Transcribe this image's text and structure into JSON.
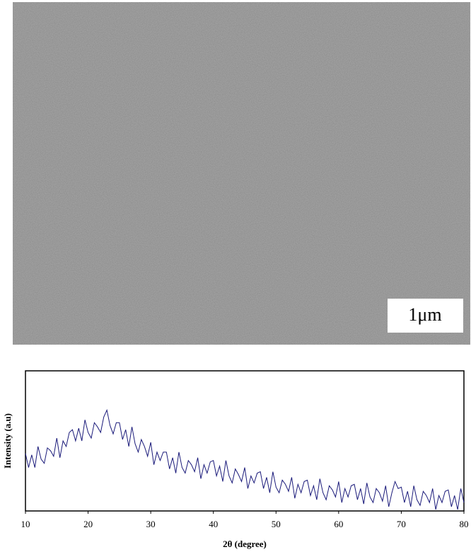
{
  "image": {
    "scale_label": "1μm"
  },
  "chart_data": {
    "type": "line",
    "xlabel": "2θ (degree)",
    "ylabel": "Intensity (a.u)",
    "xlim": [
      10,
      80
    ],
    "xticks": [
      10,
      20,
      30,
      40,
      50,
      60,
      70,
      80
    ],
    "ylim": [
      0,
      100
    ],
    "x": [
      10,
      10.5,
      11,
      11.5,
      12,
      12.5,
      13,
      13.5,
      14,
      14.5,
      15,
      15.5,
      16,
      16.5,
      17,
      17.5,
      18,
      18.5,
      19,
      19.5,
      20,
      20.5,
      21,
      21.5,
      22,
      22.5,
      23,
      23.5,
      24,
      24.5,
      25,
      25.5,
      26,
      26.5,
      27,
      27.5,
      28,
      28.5,
      29,
      29.5,
      30,
      30.5,
      31,
      31.5,
      32,
      32.5,
      33,
      33.5,
      34,
      34.5,
      35,
      35.5,
      36,
      36.5,
      37,
      37.5,
      38,
      38.5,
      39,
      39.5,
      40,
      40.5,
      41,
      41.5,
      42,
      42.5,
      43,
      43.5,
      44,
      44.5,
      45,
      45.5,
      46,
      46.5,
      47,
      47.5,
      48,
      48.5,
      49,
      49.5,
      50,
      50.5,
      51,
      51.5,
      52,
      52.5,
      53,
      53.5,
      54,
      54.5,
      55,
      55.5,
      56,
      56.5,
      57,
      57.5,
      58,
      58.5,
      59,
      59.5,
      60,
      60.5,
      61,
      61.5,
      62,
      62.5,
      63,
      63.5,
      64,
      64.5,
      65,
      65.5,
      66,
      66.5,
      67,
      67.5,
      68,
      68.5,
      69,
      69.5,
      70,
      70.5,
      71,
      71.5,
      72,
      72.5,
      73,
      73.5,
      74,
      74.5,
      75,
      75.5,
      76,
      76.5,
      77,
      77.5,
      78,
      78.5,
      79,
      79.5,
      80
    ],
    "series": [
      {
        "color": "#1a1a7a",
        "values": [
          41,
          31,
          40,
          31,
          46,
          37,
          34,
          45,
          43,
          39,
          52,
          38,
          50,
          46,
          56,
          58,
          50,
          59,
          50,
          65,
          56,
          52,
          63,
          60,
          56,
          67,
          72,
          61,
          55,
          63,
          63,
          51,
          58,
          46,
          60,
          48,
          42,
          51,
          46,
          39,
          49,
          33,
          42,
          36,
          42,
          42,
          30,
          38,
          27,
          42,
          31,
          27,
          36,
          33,
          28,
          38,
          23,
          33,
          27,
          35,
          36,
          25,
          32,
          21,
          36,
          25,
          20,
          30,
          26,
          21,
          31,
          16,
          25,
          20,
          27,
          28,
          16,
          24,
          13,
          28,
          17,
          13,
          22,
          19,
          14,
          24,
          9,
          19,
          13,
          21,
          22,
          11,
          18,
          8,
          23,
          13,
          8,
          18,
          15,
          10,
          21,
          6,
          16,
          10,
          18,
          19,
          8,
          16,
          5,
          20,
          10,
          6,
          16,
          13,
          7,
          18,
          3,
          13,
          21,
          16,
          17,
          6,
          14,
          3,
          18,
          8,
          4,
          14,
          11,
          6,
          16,
          1,
          11,
          6,
          14,
          15,
          3,
          11,
          1,
          16,
          6
        ]
      }
    ]
  }
}
